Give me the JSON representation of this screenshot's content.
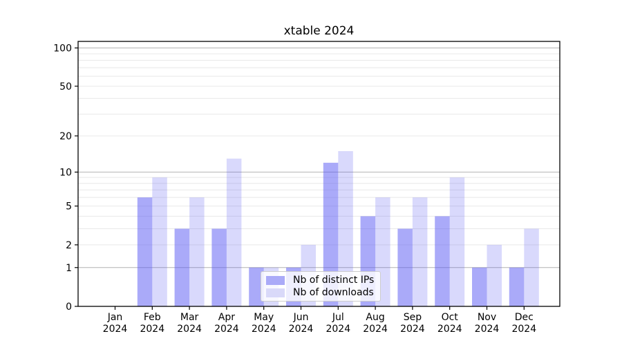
{
  "chart_data": {
    "type": "bar",
    "title": "xtable 2024",
    "categories": [
      "Jan",
      "Feb",
      "Mar",
      "Apr",
      "May",
      "Jun",
      "Jul",
      "Aug",
      "Sep",
      "Oct",
      "Nov",
      "Dec"
    ],
    "year": "2024",
    "series": [
      {
        "name": "Nb of distinct IPs",
        "color": "#aaaaf8",
        "fill": "rgba(86,86,243,0.5)",
        "values": [
          0,
          6,
          3,
          3,
          1,
          1,
          12,
          4,
          3,
          4,
          1,
          1
        ]
      },
      {
        "name": "Nb of downloads",
        "color": "#d9d9f9",
        "fill": "rgba(80,80,240,0.22)",
        "values": [
          0,
          9,
          6,
          13,
          1,
          2,
          15,
          6,
          6,
          9,
          2,
          3
        ]
      }
    ],
    "yticks": [
      0,
      1,
      2,
      5,
      10,
      20,
      50,
      100
    ],
    "scale": "log10(value+1)",
    "ylim": [
      0,
      112
    ],
    "xlabel": "",
    "ylabel": "",
    "grid": {
      "major_lines": [
        1,
        10,
        100
      ],
      "minor_lines": [
        2,
        3,
        4,
        5,
        6,
        7,
        8,
        9,
        20,
        30,
        40,
        50,
        60,
        70,
        80,
        90
      ],
      "major_color": "#b2b2b2",
      "minor_color": "#e8e8e8"
    },
    "axis_color": "#000000",
    "text_color": "#000000",
    "background": "#ffffff",
    "legend_position": "lower center"
  }
}
